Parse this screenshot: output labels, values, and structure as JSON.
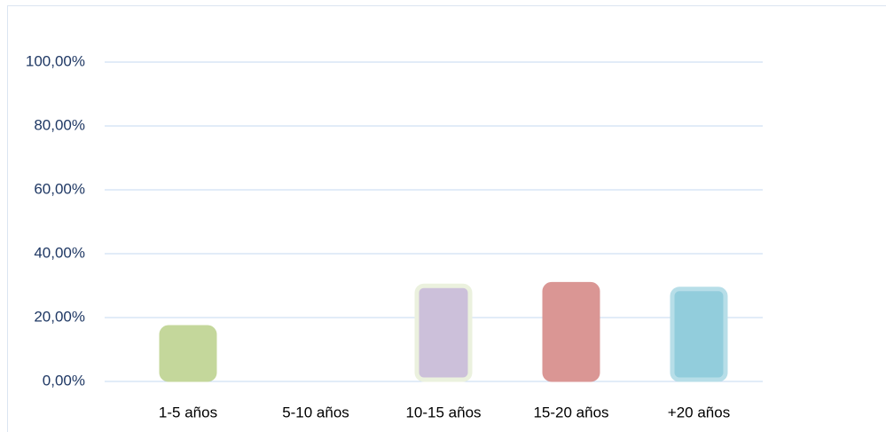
{
  "chart_data": {
    "type": "bar",
    "categories": [
      "1-5 años",
      "5-10 años",
      "10-15 años",
      "15-20 años",
      "+20 años"
    ],
    "values": [
      17.5,
      0,
      30.5,
      31,
      29.5
    ],
    "colors": [
      "#c4d79b",
      "#b3a2c7",
      "#ccc0da",
      "#da9694",
      "#92cddc"
    ],
    "border_colors": [
      "#c4d79b",
      "#b3a2c7",
      "#ebf1de",
      "#da9694",
      "#b7dee8"
    ],
    "ylim": [
      0,
      100
    ],
    "yticks": [
      {
        "value": 0,
        "label": "0,00%"
      },
      {
        "value": 20,
        "label": "20,00%"
      },
      {
        "value": 40,
        "label": "40,00%"
      },
      {
        "value": 60,
        "label": "60,00%"
      },
      {
        "value": 80,
        "label": "80,00%"
      },
      {
        "value": 100,
        "label": "100,00%"
      }
    ],
    "grid": true
  }
}
